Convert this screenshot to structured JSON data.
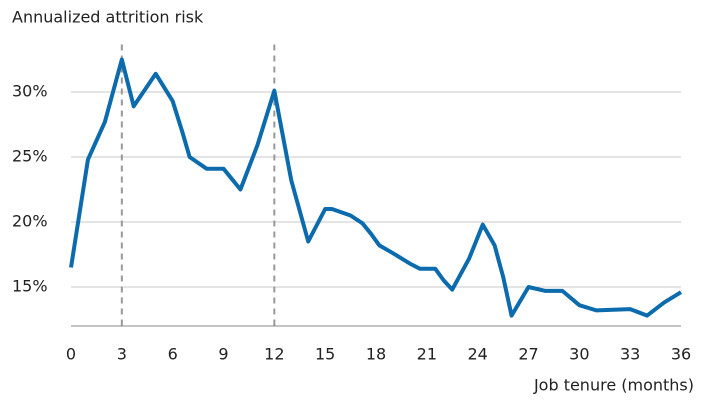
{
  "chart_data": {
    "type": "line",
    "ylabel": "Annualized attrition risk",
    "xlabel": "Job tenure (months)",
    "x": [
      0,
      1,
      2,
      3,
      3.7,
      5,
      6,
      6.6,
      7,
      8,
      9,
      10,
      11,
      12,
      13,
      14,
      15,
      15.4,
      16.5,
      17.2,
      17.7,
      18.2,
      19,
      20,
      20.6,
      21.5,
      22,
      22.5,
      23.5,
      24.3,
      25,
      25.5,
      26,
      27,
      28,
      29,
      30,
      31,
      33,
      34,
      35,
      36
    ],
    "series": [
      {
        "name": "Attrition risk",
        "color": "#0b6bad",
        "values": [
          16.5,
          24.8,
          27.7,
          32.5,
          28.9,
          31.4,
          29.3,
          26.8,
          25.0,
          24.1,
          24.1,
          22.5,
          25.9,
          30.1,
          23.2,
          18.5,
          21.0,
          21.0,
          20.5,
          19.9,
          19.1,
          18.2,
          17.6,
          16.8,
          16.4,
          16.4,
          15.5,
          14.8,
          17.2,
          19.8,
          18.2,
          15.8,
          12.8,
          15.0,
          14.7,
          14.7,
          13.6,
          13.2,
          13.3,
          12.8,
          13.8,
          14.6
        ]
      }
    ],
    "xlim": [
      0,
      36
    ],
    "xticks": [
      0,
      3,
      6,
      9,
      12,
      15,
      18,
      21,
      24,
      27,
      30,
      33,
      36
    ],
    "ylim": [
      12,
      33.5
    ],
    "yticks": [
      {
        "value": 15,
        "label": "15%"
      },
      {
        "value": 20,
        "label": "20%"
      },
      {
        "value": 25,
        "label": "25%"
      },
      {
        "value": 30,
        "label": "30%"
      }
    ],
    "vlines": [
      3,
      12
    ],
    "grid": true
  }
}
